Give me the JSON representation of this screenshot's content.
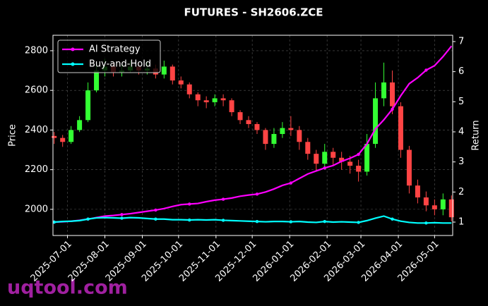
{
  "chart_data": {
    "type": "candlestick",
    "title": "FUTURES - SH2606.ZCE",
    "ylabel": "Price",
    "y2label": "Return",
    "watermark": "uqtool.com",
    "x": [
      "2025-06-20",
      "2025-06-27",
      "2025-07-04",
      "2025-07-11",
      "2025-07-18",
      "2025-07-25",
      "2025-08-01",
      "2025-08-08",
      "2025-08-15",
      "2025-08-22",
      "2025-08-29",
      "2025-09-05",
      "2025-09-12",
      "2025-09-19",
      "2025-09-26",
      "2025-10-03",
      "2025-10-10",
      "2025-10-17",
      "2025-10-24",
      "2025-10-31",
      "2025-11-07",
      "2025-11-14",
      "2025-11-21",
      "2025-11-28",
      "2025-12-05",
      "2025-12-12",
      "2025-12-19",
      "2025-12-26",
      "2026-01-02",
      "2026-01-09",
      "2026-01-16",
      "2026-01-23",
      "2026-01-30",
      "2026-02-06",
      "2026-02-13",
      "2026-02-20",
      "2026-02-27",
      "2026-03-06",
      "2026-03-13",
      "2026-03-20",
      "2026-03-27",
      "2026-04-03",
      "2026-04-10",
      "2026-04-17",
      "2026-04-24",
      "2026-05-01",
      "2026-05-08",
      "2026-05-15"
    ],
    "open": [
      2370,
      2360,
      2340,
      2400,
      2450,
      2600,
      2700,
      2720,
      2690,
      2700,
      2720,
      2700,
      2710,
      2680,
      2720,
      2650,
      2630,
      2580,
      2550,
      2540,
      2560,
      2550,
      2490,
      2450,
      2430,
      2400,
      2330,
      2380,
      2410,
      2400,
      2340,
      2280,
      2230,
      2290,
      2260,
      2240,
      2220,
      2190,
      2330,
      2560,
      2640,
      2520,
      2300,
      2120,
      2060,
      2020,
      2000,
      2050
    ],
    "high": [
      2390,
      2375,
      2420,
      2470,
      2640,
      2740,
      2760,
      2740,
      2730,
      2750,
      2740,
      2750,
      2730,
      2750,
      2730,
      2670,
      2640,
      2590,
      2570,
      2580,
      2580,
      2560,
      2500,
      2470,
      2440,
      2410,
      2410,
      2440,
      2470,
      2420,
      2360,
      2300,
      2330,
      2310,
      2290,
      2270,
      2250,
      2380,
      2640,
      2740,
      2700,
      2540,
      2320,
      2150,
      2090,
      2050,
      2080,
      2070
    ],
    "low": [
      2330,
      2315,
      2330,
      2390,
      2440,
      2590,
      2670,
      2670,
      2670,
      2690,
      2680,
      2680,
      2660,
      2660,
      2630,
      2610,
      2560,
      2520,
      2510,
      2520,
      2520,
      2470,
      2430,
      2410,
      2380,
      2300,
      2310,
      2360,
      2370,
      2300,
      2250,
      2190,
      2210,
      2220,
      2200,
      2180,
      2140,
      2170,
      2310,
      2520,
      2480,
      2260,
      2080,
      2030,
      1990,
      1970,
      1970,
      1940
    ],
    "close": [
      2360,
      2340,
      2400,
      2450,
      2600,
      2700,
      2720,
      2690,
      2700,
      2720,
      2700,
      2710,
      2680,
      2720,
      2650,
      2630,
      2580,
      2550,
      2540,
      2560,
      2550,
      2490,
      2450,
      2430,
      2400,
      2330,
      2380,
      2410,
      2400,
      2340,
      2280,
      2230,
      2290,
      2260,
      2240,
      2220,
      2190,
      2330,
      2560,
      2640,
      2520,
      2300,
      2120,
      2060,
      2020,
      2000,
      2050,
      1960
    ],
    "up_color": "#33ff33",
    "down_color": "#ff4444",
    "series": [
      {
        "name": "AI Strategy",
        "color": "#ff00ff",
        "axis": "y2",
        "values": [
          1.0,
          1.01,
          1.03,
          1.06,
          1.1,
          1.15,
          1.2,
          1.22,
          1.25,
          1.28,
          1.32,
          1.36,
          1.4,
          1.45,
          1.52,
          1.58,
          1.6,
          1.62,
          1.68,
          1.73,
          1.76,
          1.8,
          1.86,
          1.9,
          1.93,
          2.0,
          2.1,
          2.22,
          2.3,
          2.45,
          2.6,
          2.7,
          2.8,
          2.88,
          3.02,
          3.12,
          3.25,
          3.6,
          4.1,
          4.4,
          4.75,
          5.2,
          5.6,
          5.8,
          6.05,
          6.2,
          6.5,
          6.85
        ]
      },
      {
        "name": "Buy-and-Hold",
        "color": "#00ffff",
        "axis": "y2",
        "values": [
          1.0,
          1.02,
          1.03,
          1.05,
          1.1,
          1.14,
          1.15,
          1.14,
          1.13,
          1.15,
          1.14,
          1.12,
          1.1,
          1.1,
          1.08,
          1.08,
          1.07,
          1.08,
          1.07,
          1.08,
          1.06,
          1.05,
          1.04,
          1.03,
          1.02,
          1.01,
          1.02,
          1.02,
          1.01,
          1.02,
          1.0,
          0.99,
          1.02,
          1.0,
          1.01,
          1.0,
          0.99,
          1.05,
          1.13,
          1.2,
          1.1,
          1.03,
          0.99,
          0.97,
          0.97,
          0.98,
          0.97,
          0.97
        ]
      }
    ],
    "xlim": [
      "2025-06-19",
      "2026-05-16"
    ],
    "xticks": [
      "2025-07-01",
      "2025-08-01",
      "2025-09-01",
      "2025-10-01",
      "2025-11-01",
      "2025-12-01",
      "2026-01-01",
      "2026-02-01",
      "2026-03-01",
      "2026-04-01",
      "2026-05-01"
    ],
    "ylim": [
      1868,
      2878
    ],
    "yticks": [
      2000,
      2200,
      2400,
      2600,
      2800
    ],
    "y2lim": [
      0.555,
      7.21
    ],
    "y2ticks": [
      1,
      2,
      3,
      4,
      5,
      6,
      7
    ],
    "grid": true,
    "legend": "upper left"
  }
}
